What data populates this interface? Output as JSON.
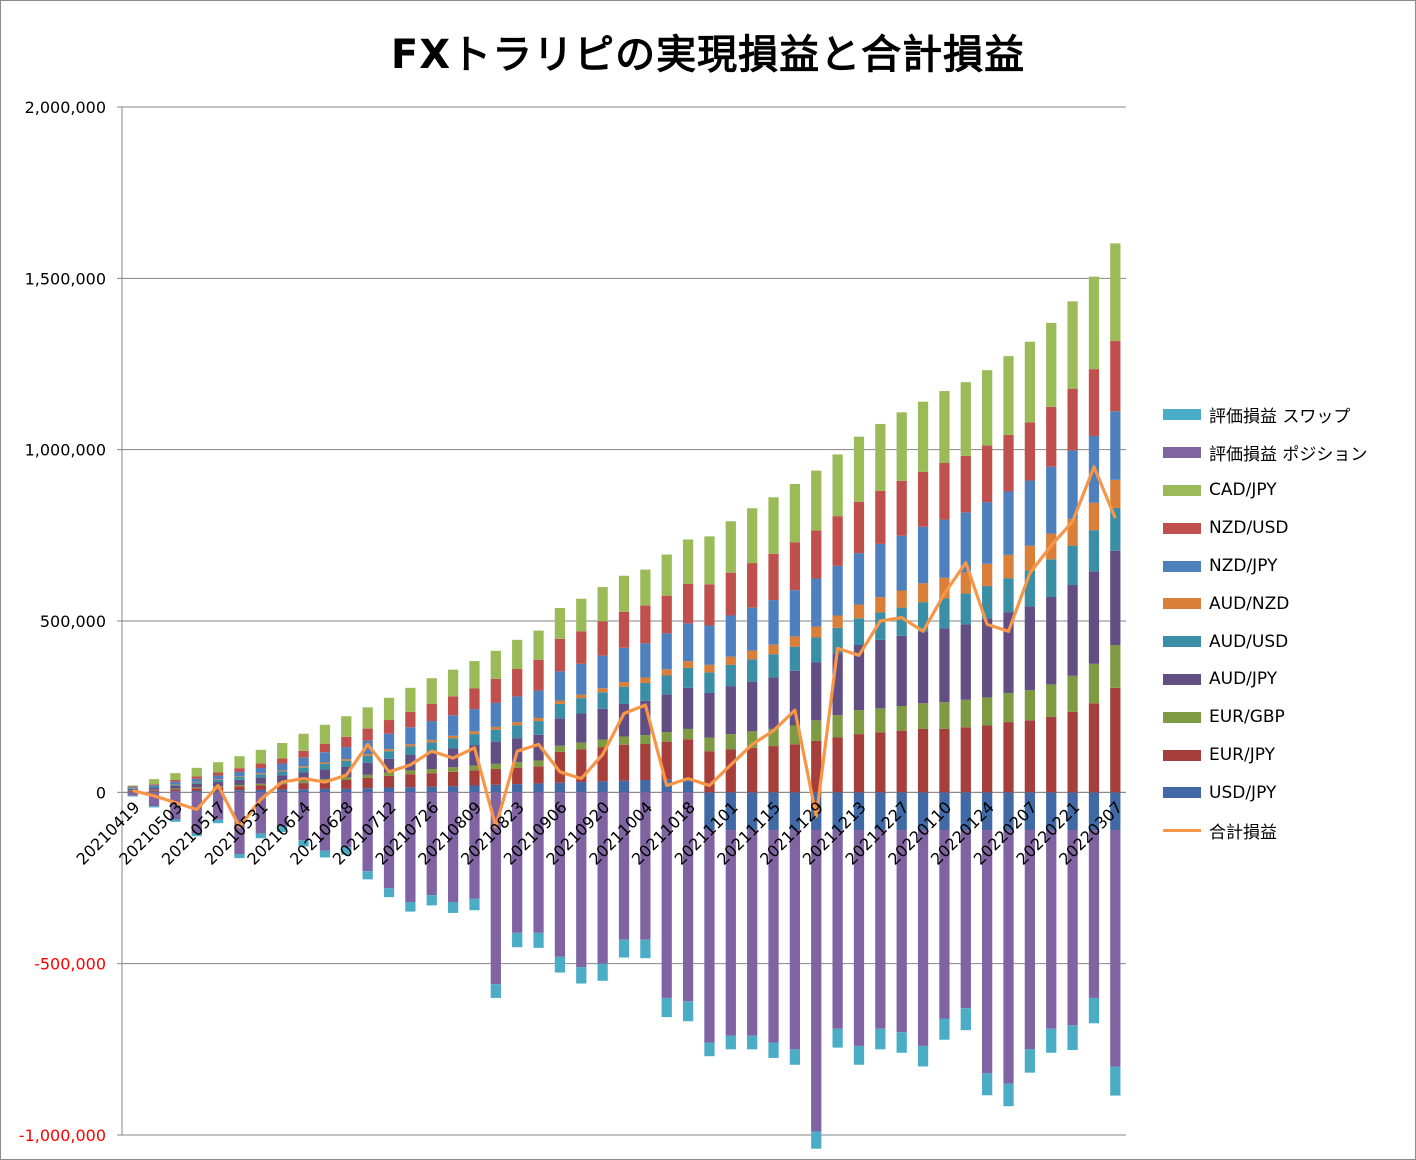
{
  "chart_data": {
    "type": "bar",
    "stacked": true,
    "title": "FXトラリピの実現損益と合計損益",
    "ylim": [
      -1000000,
      2000000
    ],
    "yticks": [
      {
        "value": 2000000,
        "label": "2,000,000"
      },
      {
        "value": 1500000,
        "label": "1,500,000"
      },
      {
        "value": 1000000,
        "label": "1,000,000"
      },
      {
        "value": 500000,
        "label": "500,000"
      },
      {
        "value": 0,
        "label": "0"
      },
      {
        "value": -500000,
        "label": "-500,000"
      },
      {
        "value": -1000000,
        "label": "-1,000,000"
      }
    ],
    "negative_label_color": "#ff0000",
    "grid": true,
    "legend_position": "right",
    "x_labels": [
      "20210419",
      "20210503",
      "20210517",
      "20210531",
      "20210614",
      "20210628",
      "20210712",
      "20210726",
      "20210809",
      "20210823",
      "20210906",
      "20210920",
      "20211004",
      "20211018",
      "20211101",
      "20211115",
      "20211129",
      "20211213",
      "20211227",
      "20220110",
      "20220124",
      "20220207",
      "20220221",
      "20220307"
    ],
    "x_label_every": 2,
    "bar_count": 47,
    "series": [
      {
        "name": "USD/JPY",
        "color": "#4069a6",
        "kind": "bar",
        "values": [
          2000,
          2000,
          3000,
          4000,
          5000,
          6000,
          7000,
          8000,
          9000,
          10000,
          10000,
          12000,
          14000,
          15000,
          16000,
          18000,
          20000,
          22000,
          24000,
          26000,
          28000,
          30000,
          32000,
          34000,
          36000,
          38000,
          40000,
          -110000,
          -110000,
          -110000,
          -110000,
          -110000,
          -110000,
          -110000,
          -110000,
          -110000,
          -110000,
          -110000,
          -110000,
          -110000,
          -110000,
          -110000,
          -110000,
          -110000,
          -110000,
          -110000,
          -110000
        ]
      },
      {
        "name": "EUR/JPY",
        "color": "#a63f3c",
        "kind": "bar",
        "values": [
          3000,
          4000,
          6000,
          8000,
          10000,
          12000,
          14000,
          16000,
          18000,
          22000,
          26000,
          30000,
          34000,
          38000,
          40000,
          42000,
          44000,
          46000,
          48000,
          50000,
          90000,
          95000,
          100000,
          105000,
          105000,
          110000,
          115000,
          120000,
          125000,
          130000,
          135000,
          140000,
          150000,
          160000,
          170000,
          175000,
          180000,
          185000,
          185000,
          190000,
          195000,
          205000,
          210000,
          220000,
          235000,
          260000,
          305000
        ]
      },
      {
        "name": "EUR/GBP",
        "color": "#7e9b43",
        "kind": "bar",
        "values": [
          1000,
          1500,
          2000,
          2500,
          3000,
          3500,
          4000,
          5000,
          6000,
          7000,
          8000,
          9000,
          10000,
          11000,
          12000,
          13000,
          14000,
          15000,
          16000,
          17000,
          18000,
          20000,
          22000,
          24000,
          26000,
          28000,
          30000,
          40000,
          45000,
          48000,
          50000,
          55000,
          60000,
          65000,
          70000,
          70000,
          72000,
          75000,
          78000,
          80000,
          82000,
          85000,
          88000,
          95000,
          105000,
          115000,
          125000
        ]
      },
      {
        "name": "AUD/JPY",
        "color": "#634e83",
        "kind": "bar",
        "values": [
          4000,
          5000,
          8000,
          10000,
          12000,
          15000,
          18000,
          20000,
          25000,
          28000,
          30000,
          35000,
          40000,
          45000,
          50000,
          55000,
          60000,
          65000,
          70000,
          75000,
          80000,
          85000,
          90000,
          95000,
          100000,
          110000,
          120000,
          130000,
          140000,
          145000,
          150000,
          160000,
          170000,
          180000,
          190000,
          200000,
          205000,
          210000,
          215000,
          220000,
          230000,
          235000,
          245000,
          255000,
          265000,
          270000,
          275000
        ]
      },
      {
        "name": "AUD/USD",
        "color": "#3a8ea5",
        "kind": "bar",
        "values": [
          2000,
          3000,
          4000,
          5000,
          6000,
          8000,
          10000,
          12000,
          14000,
          16000,
          18000,
          20000,
          22000,
          25000,
          28000,
          30000,
          32000,
          35000,
          38000,
          40000,
          42000,
          45000,
          48000,
          50000,
          52000,
          55000,
          58000,
          60000,
          62000,
          65000,
          68000,
          70000,
          72000,
          75000,
          78000,
          80000,
          82000,
          85000,
          88000,
          90000,
          95000,
          100000,
          105000,
          110000,
          115000,
          120000,
          125000
        ]
      },
      {
        "name": "AUD/NZD",
        "color": "#d97f39",
        "kind": "bar",
        "values": [
          0,
          0,
          1000,
          1000,
          2000,
          2000,
          3000,
          3000,
          4000,
          4000,
          5000,
          5000,
          6000,
          6000,
          7000,
          7000,
          8000,
          8000,
          9000,
          9000,
          10000,
          10000,
          12000,
          14000,
          16000,
          18000,
          20000,
          22000,
          24000,
          26000,
          28000,
          30000,
          32000,
          36000,
          40000,
          45000,
          50000,
          55000,
          60000,
          62000,
          65000,
          68000,
          72000,
          75000,
          78000,
          80000,
          82000
        ]
      },
      {
        "name": "NZD/JPY",
        "color": "#4e80bd",
        "kind": "bar",
        "values": [
          3000,
          5000,
          7000,
          9000,
          11000,
          13000,
          15000,
          20000,
          25000,
          30000,
          35000,
          40000,
          45000,
          50000,
          55000,
          60000,
          65000,
          70000,
          75000,
          80000,
          85000,
          90000,
          95000,
          100000,
          100000,
          105000,
          110000,
          115000,
          120000,
          125000,
          130000,
          135000,
          140000,
          145000,
          150000,
          155000,
          160000,
          165000,
          170000,
          175000,
          180000,
          185000,
          190000,
          195000,
          200000,
          195000,
          200000
        ]
      },
      {
        "name": "NZD/USD",
        "color": "#c0504d",
        "kind": "bar",
        "values": [
          2000,
          3000,
          5000,
          7000,
          9000,
          11000,
          13000,
          15000,
          20000,
          25000,
          30000,
          35000,
          40000,
          45000,
          50000,
          55000,
          60000,
          70000,
          80000,
          90000,
          95000,
          95000,
          100000,
          105000,
          110000,
          110000,
          115000,
          120000,
          125000,
          130000,
          135000,
          140000,
          140000,
          145000,
          150000,
          155000,
          160000,
          160000,
          165000,
          165000,
          165000,
          165000,
          170000,
          175000,
          180000,
          195000,
          205000
        ]
      },
      {
        "name": "CAD/JPY",
        "color": "#9bbb59",
        "kind": "bar",
        "values": [
          3000,
          15000,
          20000,
          25000,
          30000,
          35000,
          40000,
          45000,
          50000,
          55000,
          60000,
          62000,
          65000,
          70000,
          75000,
          78000,
          80000,
          82000,
          85000,
          85000,
          90000,
          95000,
          100000,
          105000,
          105000,
          120000,
          130000,
          140000,
          150000,
          160000,
          165000,
          170000,
          175000,
          180000,
          190000,
          195000,
          200000,
          205000,
          210000,
          215000,
          220000,
          230000,
          235000,
          245000,
          255000,
          270000,
          285000
        ]
      },
      {
        "name": "評価損益 ポジション",
        "color": "#8064a2",
        "kind": "bar",
        "values": [
          -10000,
          -40000,
          -80000,
          -120000,
          -80000,
          -180000,
          -120000,
          -100000,
          -140000,
          -170000,
          -160000,
          -230000,
          -280000,
          -320000,
          -300000,
          -320000,
          -310000,
          -560000,
          -410000,
          -410000,
          -480000,
          -510000,
          -500000,
          -430000,
          -430000,
          -600000,
          -610000,
          -620000,
          -600000,
          -600000,
          -620000,
          -640000,
          -880000,
          -580000,
          -630000,
          -580000,
          -590000,
          -630000,
          -550000,
          -520000,
          -710000,
          -740000,
          -640000,
          -580000,
          -570000,
          -490000,
          -690000
        ]
      },
      {
        "name": "評価損益 スワップ",
        "color": "#4bacc6",
        "kind": "bar",
        "values": [
          -2000,
          -4000,
          -6000,
          -8000,
          -10000,
          -12000,
          -14000,
          -16000,
          -18000,
          -20000,
          -22000,
          -24000,
          -26000,
          -28000,
          -30000,
          -32000,
          -34000,
          -40000,
          -42000,
          -44000,
          -46000,
          -48000,
          -50000,
          -52000,
          -54000,
          -56000,
          -58000,
          -40000,
          -40000,
          -40000,
          -45000,
          -45000,
          -50000,
          -55000,
          -55000,
          -60000,
          -60000,
          -60000,
          -62000,
          -64000,
          -64000,
          -66000,
          -68000,
          -70000,
          -72000,
          -74000,
          -85000
        ]
      },
      {
        "name": "合計損益",
        "color": "#f79646",
        "kind": "line",
        "values": [
          5000,
          -10000,
          -30000,
          -50000,
          20000,
          -100000,
          -20000,
          30000,
          40000,
          30000,
          50000,
          140000,
          60000,
          80000,
          120000,
          100000,
          130000,
          -100000,
          120000,
          140000,
          60000,
          40000,
          110000,
          230000,
          255000,
          20000,
          40000,
          20000,
          80000,
          140000,
          180000,
          240000,
          -70000,
          420000,
          400000,
          500000,
          510000,
          470000,
          580000,
          670000,
          490000,
          470000,
          640000,
          720000,
          790000,
          950000,
          800000
        ]
      }
    ]
  }
}
